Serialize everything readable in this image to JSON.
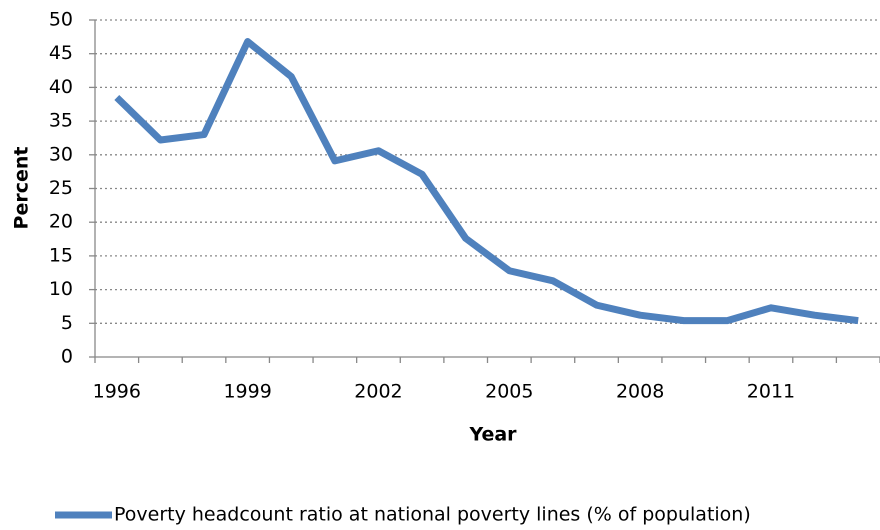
{
  "chart_data": {
    "type": "line",
    "y_label": "Percent",
    "x_label": "Year",
    "categories": [
      "1996",
      null,
      null,
      "1999",
      null,
      null,
      "2002",
      null,
      null,
      "2005",
      null,
      null,
      "2008",
      null,
      null,
      "2011",
      null,
      null
    ],
    "series": [
      {
        "name": "Poverty headcount ratio at national poverty lines (% of population)",
        "color": "#4f81bd",
        "values": [
          38.5,
          32.2,
          33.0,
          46.8,
          41.6,
          29.1,
          30.6,
          27.1,
          17.6,
          12.8,
          11.3,
          7.7,
          6.2,
          5.4,
          5.4,
          7.3,
          6.2,
          5.4
        ]
      }
    ],
    "ylim": [
      0,
      50
    ],
    "yticks": [
      0,
      5,
      10,
      15,
      20,
      25,
      30,
      35,
      40,
      45,
      50
    ],
    "grid": true
  }
}
